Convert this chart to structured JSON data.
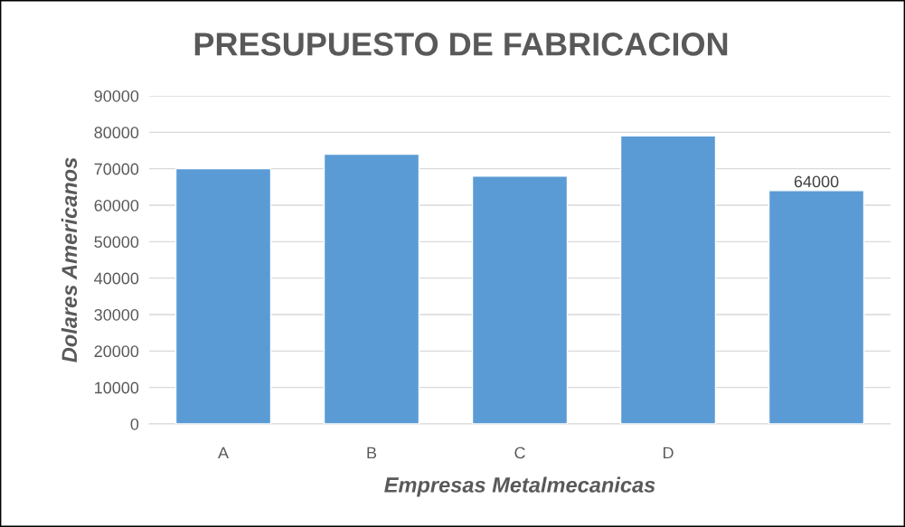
{
  "chart_data": {
    "type": "bar",
    "title": "PRESUPUESTO DE FABRICACION",
    "xlabel": "Empresas Metalmecanicas",
    "ylabel": "Dolares Americanos",
    "categories": [
      "A",
      "B",
      "C",
      "D",
      null
    ],
    "values": [
      70000,
      74000,
      68000,
      79000,
      64000
    ],
    "value_labels": [
      null,
      null,
      null,
      null,
      "64000"
    ],
    "color": "#5b9bd5",
    "ylim": [
      0,
      90000
    ],
    "yticks": [
      0,
      10000,
      20000,
      30000,
      40000,
      50000,
      60000,
      70000,
      80000,
      90000
    ],
    "grid": "y",
    "legend": false
  }
}
